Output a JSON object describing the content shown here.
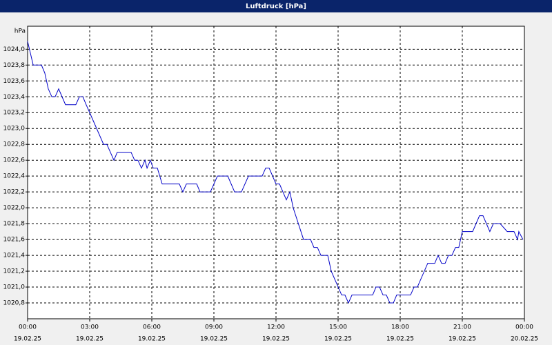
{
  "chart_data": {
    "type": "line",
    "title": "Luftdruck [hPa]",
    "y_label": "hPa",
    "x": [
      0,
      0.27,
      0.67,
      0.83,
      1,
      1.17,
      1.33,
      1.5,
      1.83,
      2.33,
      2.5,
      2.67,
      2.83,
      3,
      3.67,
      3.83,
      4.17,
      4.33,
      5,
      5.17,
      5.33,
      5.5,
      5.67,
      5.77,
      5.93,
      6.07,
      6.27,
      6.5,
      7.33,
      7.5,
      7.67,
      8.17,
      8.33,
      8.83,
      9.17,
      9.67,
      10,
      10.33,
      10.67,
      11.33,
      11.5,
      11.67,
      12,
      12.17,
      12.5,
      12.67,
      12.83,
      13.33,
      13.67,
      13.83,
      14,
      14.17,
      14.5,
      14.67,
      15.17,
      15.33,
      15.5,
      15.67,
      16.67,
      16.83,
      17,
      17.17,
      17.33,
      17.5,
      17.67,
      17.83,
      18.5,
      18.67,
      18.83,
      19.33,
      19.67,
      19.83,
      20,
      20.17,
      20.33,
      20.5,
      20.67,
      20.83,
      21,
      21.5,
      21.83,
      22,
      22.33,
      22.5,
      22.83,
      23.17,
      23.5,
      23.67,
      23.73,
      23.93
    ],
    "series": [
      {
        "color": "#0000c8",
        "values": [
          1024.1,
          1023.8,
          1023.8,
          1023.7,
          1023.5,
          1023.4,
          1023.4,
          1023.5,
          1023.3,
          1023.3,
          1023.4,
          1023.4,
          1023.3,
          1023.2,
          1022.8,
          1022.8,
          1022.6,
          1022.7,
          1022.7,
          1022.6,
          1022.6,
          1022.5,
          1022.6,
          1022.5,
          1022.6,
          1022.5,
          1022.5,
          1022.3,
          1022.3,
          1022.2,
          1022.3,
          1022.3,
          1022.2,
          1022.2,
          1022.4,
          1022.4,
          1022.2,
          1022.2,
          1022.4,
          1022.4,
          1022.5,
          1022.5,
          1022.3,
          1022.3,
          1022.1,
          1022.2,
          1022.0,
          1021.6,
          1021.6,
          1021.5,
          1021.5,
          1021.4,
          1021.4,
          1021.2,
          1020.9,
          1020.9,
          1020.8,
          1020.9,
          1020.9,
          1021.0,
          1021.0,
          1020.9,
          1020.9,
          1020.8,
          1020.8,
          1020.9,
          1020.9,
          1021.0,
          1021.0,
          1021.3,
          1021.3,
          1021.4,
          1021.3,
          1021.3,
          1021.4,
          1021.4,
          1021.5,
          1021.5,
          1021.7,
          1021.7,
          1021.9,
          1021.9,
          1021.7,
          1021.8,
          1021.8,
          1021.7,
          1021.7,
          1021.6,
          1021.7,
          1021.6
        ]
      }
    ],
    "xlim": [
      0,
      24
    ],
    "xticks": [
      {
        "value": 0,
        "label": [
          "00:00",
          "19.02.25"
        ]
      },
      {
        "value": 3,
        "label": [
          "03:00",
          "19.02.25"
        ]
      },
      {
        "value": 6,
        "label": [
          "06:00",
          "19.02.25"
        ]
      },
      {
        "value": 9,
        "label": [
          "09:00",
          "19.02.25"
        ]
      },
      {
        "value": 12,
        "label": [
          "12:00",
          "19.02.25"
        ]
      },
      {
        "value": 15,
        "label": [
          "15:00",
          "19.02.25"
        ]
      },
      {
        "value": 18,
        "label": [
          "18:00",
          "19.02.25"
        ]
      },
      {
        "value": 21,
        "label": [
          "21:00",
          "19.02.25"
        ]
      },
      {
        "value": 24,
        "label": [
          "00:00",
          "20.02.25"
        ]
      }
    ],
    "ylim": [
      1020.6,
      1024.29
    ],
    "yticks": [
      {
        "value": 1020.8,
        "label": "1020,8"
      },
      {
        "value": 1021.0,
        "label": "1021,0"
      },
      {
        "value": 1021.2,
        "label": "1021,2"
      },
      {
        "value": 1021.4,
        "label": "1021,4"
      },
      {
        "value": 1021.6,
        "label": "1021,6"
      },
      {
        "value": 1021.8,
        "label": "1021,8"
      },
      {
        "value": 1022.0,
        "label": "1022,0"
      },
      {
        "value": 1022.2,
        "label": "1022,2"
      },
      {
        "value": 1022.4,
        "label": "1022,4"
      },
      {
        "value": 1022.6,
        "label": "1022,6"
      },
      {
        "value": 1022.8,
        "label": "1022,8"
      },
      {
        "value": 1023.0,
        "label": "1023,0"
      },
      {
        "value": 1023.2,
        "label": "1023,2"
      },
      {
        "value": 1023.4,
        "label": "1023,4"
      },
      {
        "value": 1023.6,
        "label": "1023,6"
      },
      {
        "value": 1023.8,
        "label": "1023,8"
      },
      {
        "value": 1024.0,
        "label": "1024,0"
      }
    ],
    "grid": true
  }
}
